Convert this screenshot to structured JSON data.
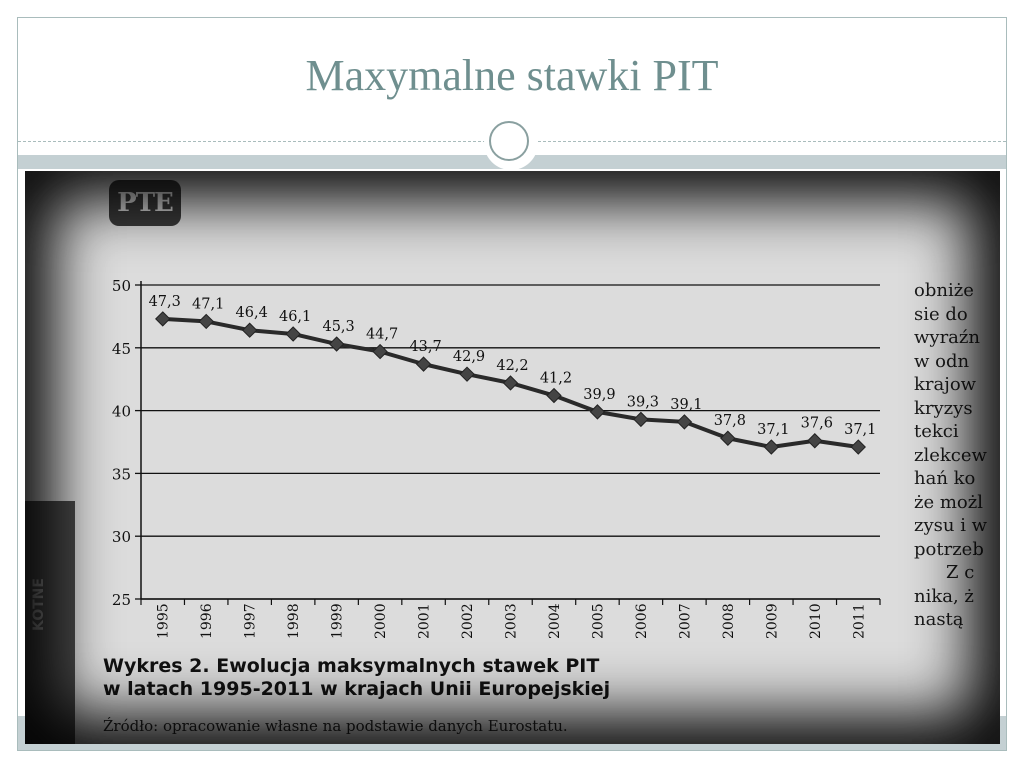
{
  "slide": {
    "title": "Maxymalne stawki PIT"
  },
  "figure": {
    "logo_text": "PTE",
    "caption_line1": "Wykres 2. Ewolucja maksymalnych stawek PIT",
    "caption_line2": "w latach 1995-2011 w krajach Unii Europejskiej",
    "source": "Źródło: opracowanie własne na podstawie danych Eurostatu.",
    "left_tab_text": "KOTNE"
  },
  "side_text": {
    "lines": [
      "obniże",
      "sie do",
      "wyraźn",
      "w odn",
      "krajow",
      "kryzys",
      "tekci",
      "zlekcew",
      "hań ko",
      "że możl",
      "zysu i w",
      "potrzeb",
      "Z c",
      "nika, ż",
      "nastą"
    ]
  },
  "chart_data": {
    "type": "line",
    "categories": [
      "1995",
      "1996",
      "1997",
      "1998",
      "1999",
      "2000",
      "2001",
      "2002",
      "2003",
      "2004",
      "2005",
      "2006",
      "2007",
      "2008",
      "2009",
      "2010",
      "2011"
    ],
    "series": [
      {
        "values": [
          47.3,
          47.1,
          46.4,
          46.1,
          45.3,
          44.7,
          43.7,
          42.9,
          42.2,
          41.2,
          39.9,
          39.3,
          39.1,
          37.8,
          37.1,
          37.6,
          37.1
        ]
      }
    ],
    "data_labels": [
      "47,3",
      "47,1",
      "46,4",
      "46,1",
      "45,3",
      "44,7",
      "43,7",
      "42,9",
      "42,2",
      "41,2",
      "39,9",
      "39,3",
      "39,1",
      "37,8",
      "37,1",
      "37,6",
      "37,1"
    ],
    "y_ticks": [
      "50",
      "45",
      "40",
      "35",
      "30",
      "25"
    ],
    "ylim": [
      25,
      50
    ],
    "grid": true,
    "marker": "diamond",
    "colors": {
      "line": "#2a2a2a",
      "marker": "#444444",
      "grid": "#111111"
    }
  }
}
